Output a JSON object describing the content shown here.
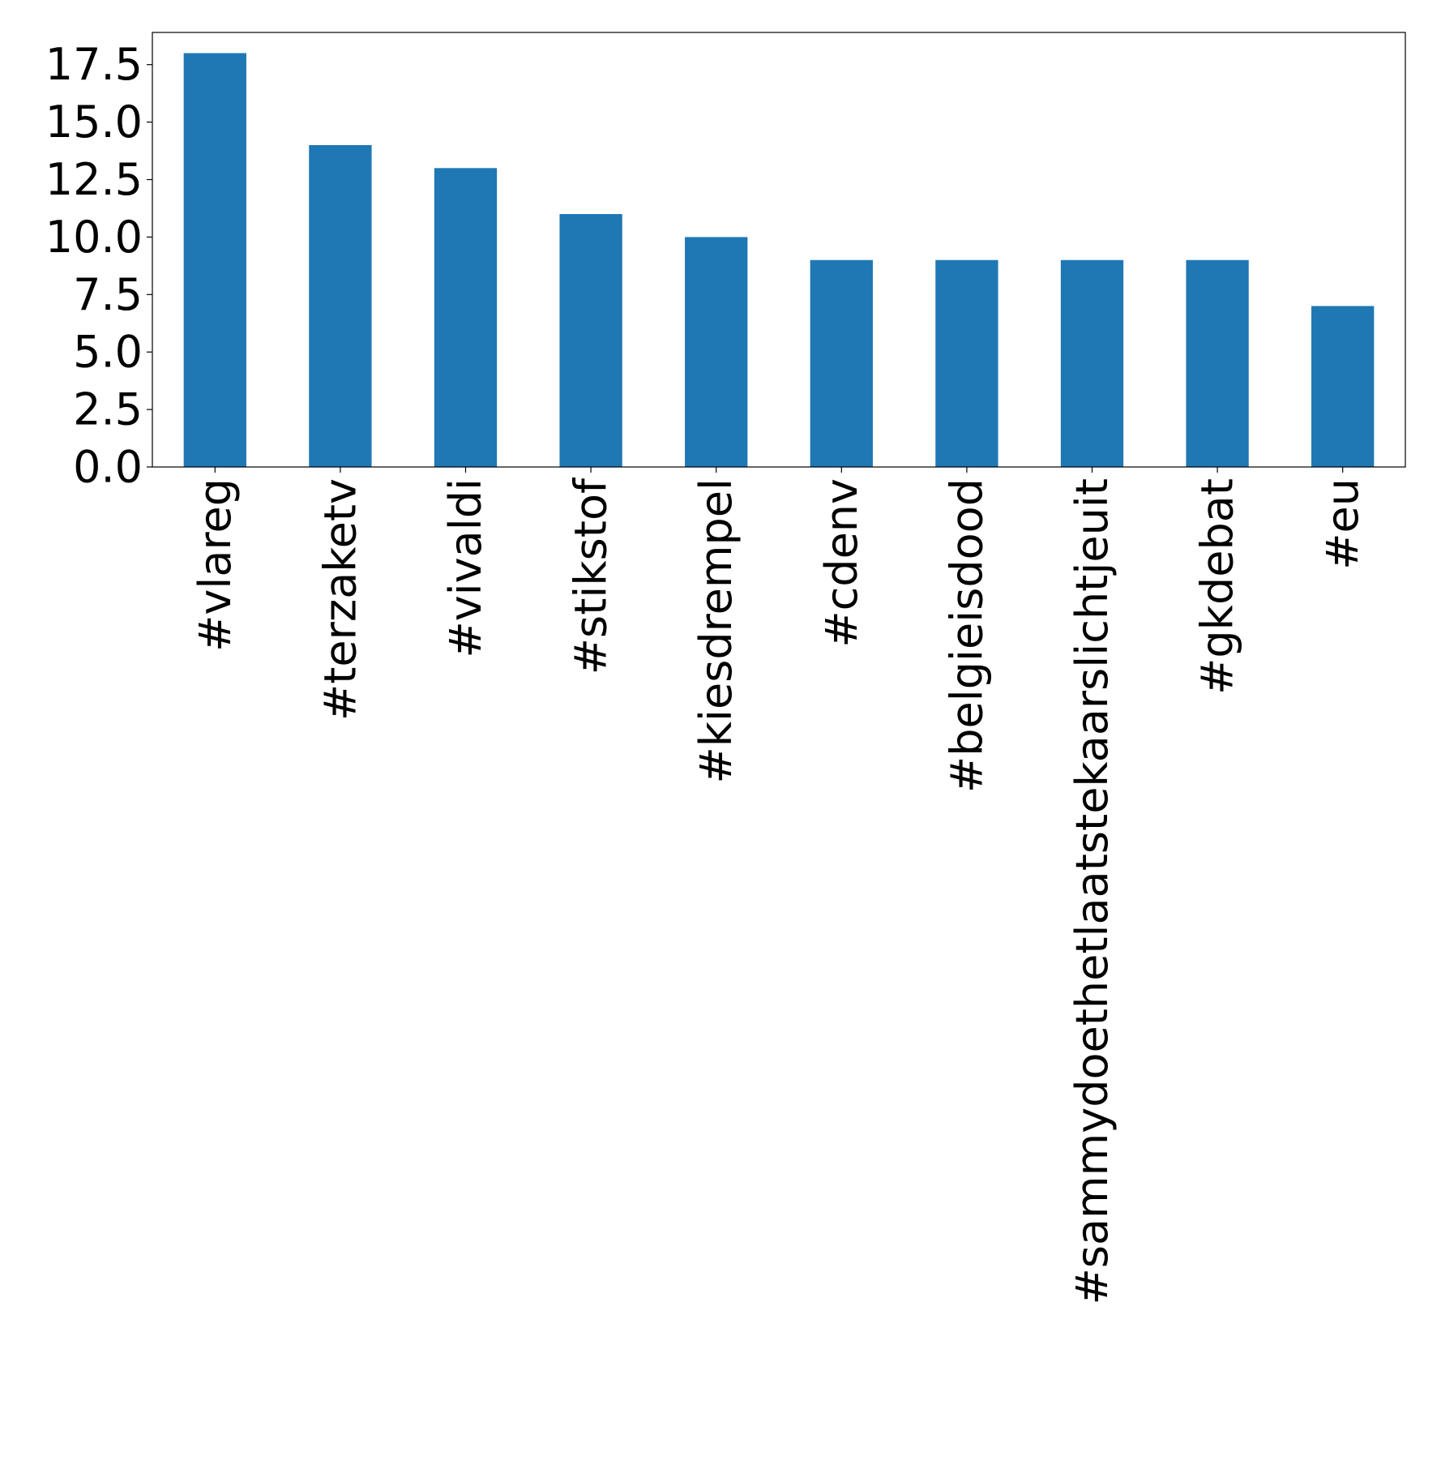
{
  "chart_data": {
    "type": "bar",
    "categories": [
      "#vlareg",
      "#terzaketv",
      "#vivaldi",
      "#stikstof",
      "#kiesdrempel",
      "#cdenv",
      "#belgieisdood",
      "#sammydoethetlaatstekaarslichtjeuit",
      "#gkdebat",
      "#eu"
    ],
    "values": [
      18,
      14,
      13,
      11,
      10,
      9,
      9,
      9,
      9,
      7
    ],
    "ylim": [
      0,
      18.9
    ],
    "yticks": [
      0.0,
      2.5,
      5.0,
      7.5,
      10.0,
      12.5,
      15.0,
      17.5
    ],
    "ytick_labels": [
      "0.0",
      "2.5",
      "5.0",
      "7.5",
      "10.0",
      "12.5",
      "15.0",
      "17.5"
    ],
    "bar_color": "#1f77b4",
    "grid": false,
    "legend": "none"
  }
}
